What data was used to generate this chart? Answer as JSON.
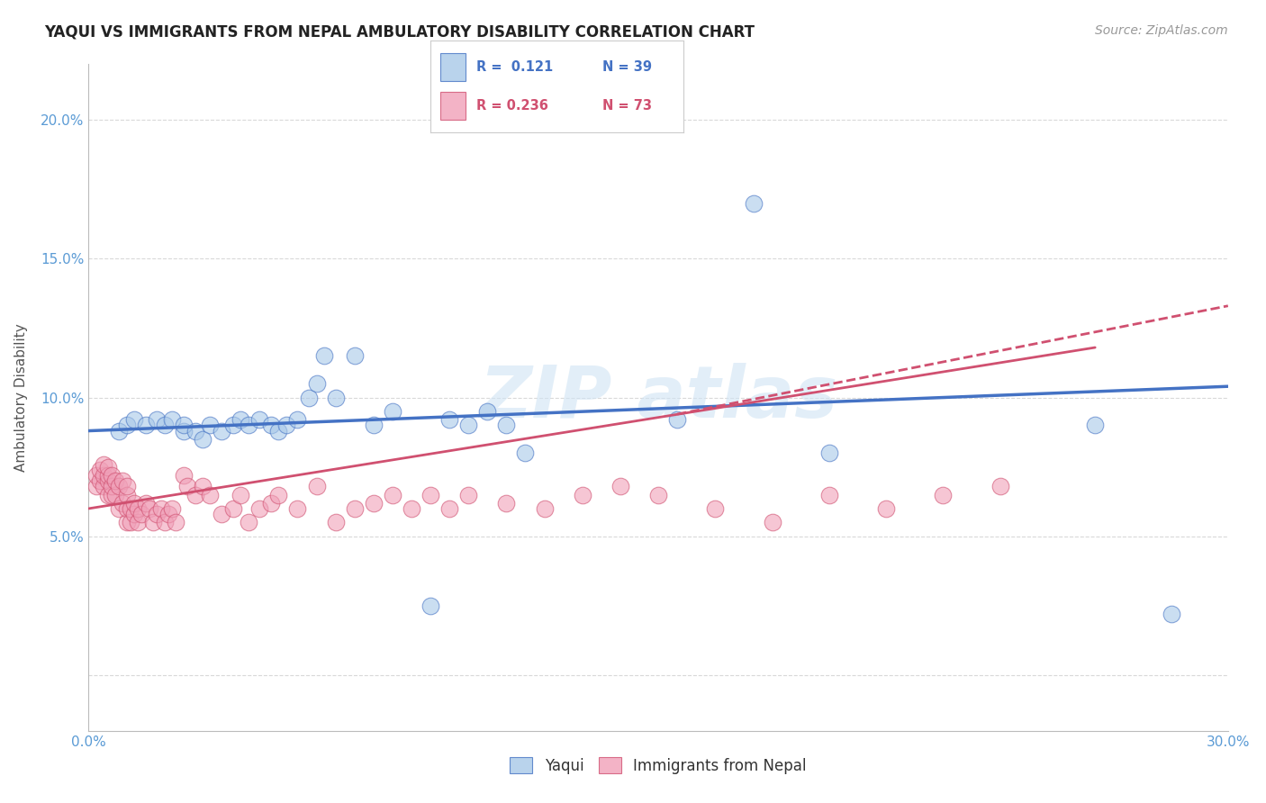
{
  "title": "YAQUI VS IMMIGRANTS FROM NEPAL AMBULATORY DISABILITY CORRELATION CHART",
  "source_text": "Source: ZipAtlas.com",
  "ylabel": "Ambulatory Disability",
  "xlim": [
    0.0,
    0.3
  ],
  "ylim": [
    -0.02,
    0.22
  ],
  "x_ticks": [
    0.0,
    0.05,
    0.1,
    0.15,
    0.2,
    0.25,
    0.3
  ],
  "y_ticks": [
    0.0,
    0.05,
    0.1,
    0.15,
    0.2
  ],
  "blue_color": "#a8c8e8",
  "pink_color": "#f0a0b8",
  "trendline_blue": "#4472c4",
  "trendline_pink": "#d05070",
  "watermark_color": "#d0e4f4",
  "background_color": "#ffffff",
  "grid_color": "#d0d0d0",
  "title_color": "#222222",
  "source_color": "#999999",
  "tick_color": "#5b9bd5",
  "blue_scatter_x": [
    0.008,
    0.01,
    0.012,
    0.015,
    0.018,
    0.02,
    0.022,
    0.025,
    0.025,
    0.028,
    0.03,
    0.032,
    0.035,
    0.038,
    0.04,
    0.042,
    0.045,
    0.048,
    0.05,
    0.052,
    0.055,
    0.058,
    0.06,
    0.062,
    0.065,
    0.07,
    0.075,
    0.08,
    0.09,
    0.095,
    0.1,
    0.105,
    0.11,
    0.115,
    0.155,
    0.175,
    0.195,
    0.265,
    0.285
  ],
  "blue_scatter_y": [
    0.088,
    0.09,
    0.092,
    0.09,
    0.092,
    0.09,
    0.092,
    0.088,
    0.09,
    0.088,
    0.085,
    0.09,
    0.088,
    0.09,
    0.092,
    0.09,
    0.092,
    0.09,
    0.088,
    0.09,
    0.092,
    0.1,
    0.105,
    0.115,
    0.1,
    0.115,
    0.09,
    0.095,
    0.025,
    0.092,
    0.09,
    0.095,
    0.09,
    0.08,
    0.092,
    0.17,
    0.08,
    0.09,
    0.022
  ],
  "pink_scatter_x": [
    0.002,
    0.002,
    0.003,
    0.003,
    0.004,
    0.004,
    0.004,
    0.005,
    0.005,
    0.005,
    0.005,
    0.006,
    0.006,
    0.006,
    0.007,
    0.007,
    0.008,
    0.008,
    0.009,
    0.009,
    0.01,
    0.01,
    0.01,
    0.01,
    0.011,
    0.011,
    0.012,
    0.012,
    0.013,
    0.013,
    0.014,
    0.015,
    0.016,
    0.017,
    0.018,
    0.019,
    0.02,
    0.021,
    0.022,
    0.023,
    0.025,
    0.026,
    0.028,
    0.03,
    0.032,
    0.035,
    0.038,
    0.04,
    0.042,
    0.045,
    0.048,
    0.05,
    0.055,
    0.06,
    0.065,
    0.07,
    0.075,
    0.08,
    0.085,
    0.09,
    0.095,
    0.1,
    0.11,
    0.12,
    0.13,
    0.14,
    0.15,
    0.165,
    0.18,
    0.195,
    0.21,
    0.225,
    0.24
  ],
  "pink_scatter_y": [
    0.068,
    0.072,
    0.07,
    0.074,
    0.068,
    0.072,
    0.076,
    0.065,
    0.07,
    0.072,
    0.075,
    0.065,
    0.068,
    0.072,
    0.065,
    0.07,
    0.06,
    0.068,
    0.062,
    0.07,
    0.055,
    0.06,
    0.065,
    0.068,
    0.055,
    0.06,
    0.058,
    0.062,
    0.055,
    0.06,
    0.058,
    0.062,
    0.06,
    0.055,
    0.058,
    0.06,
    0.055,
    0.058,
    0.06,
    0.055,
    0.072,
    0.068,
    0.065,
    0.068,
    0.065,
    0.058,
    0.06,
    0.065,
    0.055,
    0.06,
    0.062,
    0.065,
    0.06,
    0.068,
    0.055,
    0.06,
    0.062,
    0.065,
    0.06,
    0.065,
    0.06,
    0.065,
    0.062,
    0.06,
    0.065,
    0.068,
    0.065,
    0.06,
    0.055,
    0.065,
    0.06,
    0.065,
    0.068
  ],
  "blue_trend_x0": 0.0,
  "blue_trend_x1": 0.3,
  "blue_trend_y0": 0.088,
  "blue_trend_y1": 0.104,
  "pink_trend_x0": 0.0,
  "pink_trend_x1": 0.265,
  "pink_trend_y0": 0.06,
  "pink_trend_y1": 0.118,
  "pink_trend_dashed_x0": 0.155,
  "pink_trend_dashed_x1": 0.3,
  "pink_trend_dashed_y0": 0.094,
  "pink_trend_dashed_y1": 0.133
}
